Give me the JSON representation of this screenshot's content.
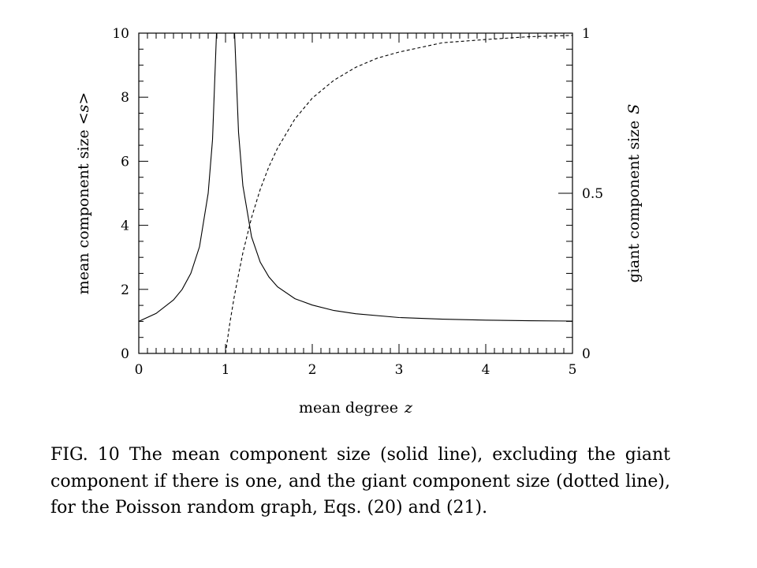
{
  "chart_data": {
    "type": "line",
    "xlabel": "mean degree",
    "xlabel_var": "z",
    "ylabel_left": "mean component size",
    "ylabel_left_var": "<s>",
    "ylabel_right": "giant component size",
    "ylabel_right_var": "S",
    "xlim": [
      0,
      5
    ],
    "ylim_left": [
      0,
      10
    ],
    "ylim_right": [
      0,
      1.0
    ],
    "x_ticks": [
      "0",
      "1",
      "2",
      "3",
      "4",
      "5"
    ],
    "y_ticks_left": [
      "0",
      "2",
      "4",
      "6",
      "8",
      "10"
    ],
    "y_ticks_right": [
      "0",
      "0.5",
      "1"
    ],
    "grid": false,
    "series": [
      {
        "axis": "left",
        "style": "solid",
        "color": "#000000",
        "x": [
          0,
          0.2,
          0.4,
          0.5,
          0.6,
          0.7,
          0.8,
          0.85,
          0.9,
          1.1,
          1.15,
          1.2,
          1.3,
          1.4,
          1.5,
          1.6,
          1.8,
          2.0,
          2.25,
          2.5,
          3.0,
          3.5,
          4.0,
          4.5,
          5.0
        ],
        "y": [
          1.0,
          1.25,
          1.67,
          2.0,
          2.5,
          3.33,
          5.0,
          6.67,
          10.0,
          10.0,
          6.9,
          5.24,
          3.64,
          2.85,
          2.39,
          2.08,
          1.71,
          1.51,
          1.34,
          1.24,
          1.12,
          1.07,
          1.04,
          1.02,
          1.01
        ]
      },
      {
        "axis": "right",
        "style": "dashed",
        "color": "#000000",
        "x": [
          1.0,
          1.05,
          1.1,
          1.15,
          1.2,
          1.3,
          1.4,
          1.5,
          1.6,
          1.8,
          2.0,
          2.25,
          2.5,
          2.75,
          3.0,
          3.5,
          4.0,
          4.5,
          5.0
        ],
        "y": [
          0.0,
          0.095,
          0.176,
          0.246,
          0.314,
          0.424,
          0.512,
          0.583,
          0.641,
          0.732,
          0.797,
          0.853,
          0.893,
          0.922,
          0.941,
          0.97,
          0.98,
          0.989,
          0.993
        ]
      }
    ]
  },
  "caption": "FIG. 10 The mean component size (solid line), excluding the giant component if there is one, and the giant component size (dotted line), for the Poisson random graph, Eqs. (20) and (21)."
}
